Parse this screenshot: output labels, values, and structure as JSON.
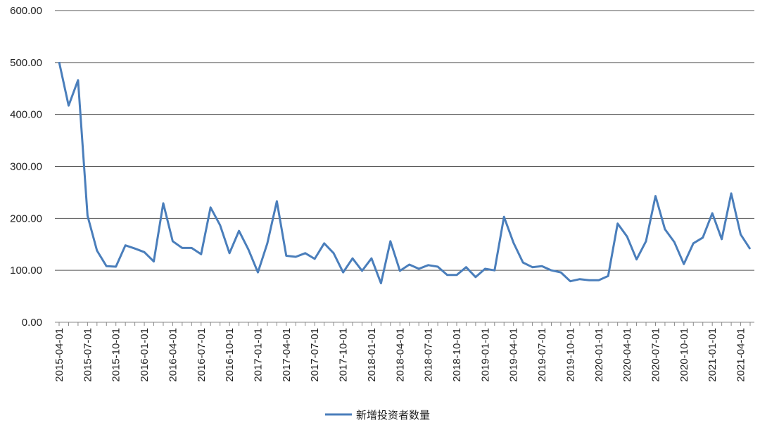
{
  "chart_data": {
    "type": "line",
    "categories": [
      "2015-04-01",
      null,
      null,
      "2015-07-01",
      null,
      null,
      "2015-10-01",
      null,
      null,
      "2016-01-01",
      null,
      null,
      "2016-04-01",
      null,
      null,
      "2016-07-01",
      null,
      null,
      "2016-10-01",
      null,
      null,
      "2017-01-01",
      null,
      null,
      "2017-04-01",
      null,
      null,
      "2017-07-01",
      null,
      null,
      "2017-10-01",
      null,
      null,
      "2018-01-01",
      null,
      null,
      "2018-04-01",
      null,
      null,
      "2018-07-01",
      null,
      null,
      "2018-10-01",
      null,
      null,
      "2019-01-01",
      null,
      null,
      "2019-04-01",
      null,
      null,
      "2019-07-01",
      null,
      null,
      "2019-10-01",
      null,
      null,
      "2020-01-01",
      null,
      null,
      "2020-04-01",
      null,
      null,
      "2020-07-01",
      null,
      null,
      "2020-10-01",
      null,
      null,
      "2021-01-01",
      null,
      null,
      "2021-04-01",
      null
    ],
    "series": [
      {
        "name": "新增投资者数量",
        "color": "#4a7ebb",
        "values": [
          501,
          417,
          466,
          205,
          138,
          108,
          107,
          148,
          142,
          135,
          117,
          229,
          156,
          143,
          143,
          131,
          221,
          187,
          133,
          176,
          140,
          96,
          152,
          233,
          128,
          126,
          133,
          122,
          152,
          133,
          96,
          123,
          99,
          123,
          75,
          156,
          99,
          111,
          103,
          110,
          107,
          91,
          91,
          106,
          87,
          103,
          100,
          203,
          153,
          115,
          106,
          108,
          100,
          96,
          79,
          83,
          81,
          81,
          89,
          190,
          165,
          121,
          156,
          243,
          179,
          154,
          112,
          152,
          163,
          210,
          160,
          248,
          169,
          141
        ]
      }
    ],
    "ylim": [
      0,
      600
    ],
    "yticks": [
      {
        "value": 0,
        "label": "0.00"
      },
      {
        "value": 100,
        "label": "100.00"
      },
      {
        "value": 200,
        "label": "200.00"
      },
      {
        "value": 300,
        "label": "300.00"
      },
      {
        "value": 400,
        "label": "400.00"
      },
      {
        "value": 500,
        "label": "500.00"
      },
      {
        "value": 600,
        "label": "600.00"
      }
    ],
    "grid": true,
    "legend": "bottom"
  }
}
